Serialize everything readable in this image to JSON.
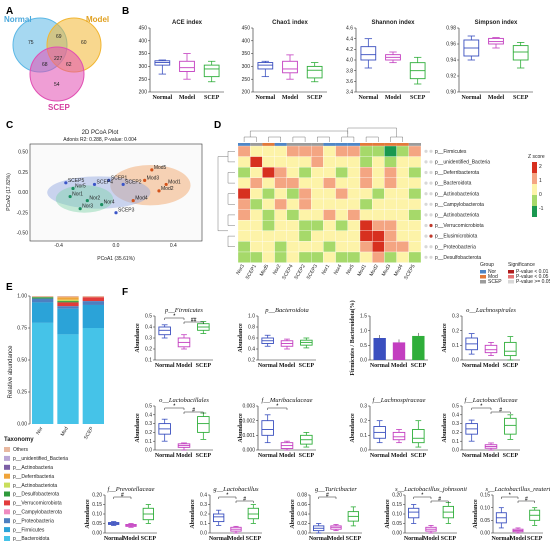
{
  "panel_labels": {
    "A": "A",
    "B": "B",
    "C": "C",
    "D": "D",
    "E": "E",
    "F": "F"
  },
  "colors": {
    "normal": "#3a4fbf",
    "model": "#c33ec0",
    "scep": "#2fae3a",
    "venn_normal": "#5cb8e6",
    "venn_model": "#f2b632",
    "venn_scep": "#e14fb3"
  },
  "groups": [
    "Normal",
    "Model",
    "SCEP"
  ],
  "venn": {
    "labels": {
      "normal": "Normal",
      "model": "Model",
      "scep": "SCEP"
    },
    "counts": [
      "75",
      "60",
      "69",
      "227",
      "68",
      "62",
      "54"
    ]
  },
  "alpha": [
    {
      "title": "ACE index",
      "ticks": [
        "450",
        "400",
        "350",
        "300",
        "250",
        "200"
      ],
      "ylim": [
        200,
        450
      ],
      "boxes": [
        [
          270,
          305,
          315,
          322,
          325
        ],
        [
          250,
          280,
          295,
          320,
          350
        ],
        [
          240,
          260,
          290,
          305,
          320
        ]
      ]
    },
    {
      "title": "Chao1 index",
      "ticks": [
        "450",
        "400",
        "350",
        "300",
        "250",
        "200"
      ],
      "ylim": [
        200,
        450
      ],
      "boxes": [
        [
          260,
          290,
          305,
          315,
          320
        ],
        [
          250,
          275,
          290,
          320,
          345
        ],
        [
          240,
          255,
          285,
          300,
          315
        ]
      ]
    },
    {
      "title": "Shannon index",
      "ticks": [
        "4.6",
        "4.4",
        "4.2",
        "4.0",
        "3.8",
        "3.6",
        "3.4"
      ],
      "ylim": [
        3.4,
        4.6
      ],
      "boxes": [
        [
          3.85,
          4.0,
          4.1,
          4.25,
          4.4
        ],
        [
          3.95,
          4.0,
          4.05,
          4.1,
          4.15
        ],
        [
          3.55,
          3.65,
          3.8,
          3.95,
          4.05
        ]
      ]
    },
    {
      "title": "Simpson index",
      "ticks": [
        "0.98",
        "0.96",
        "0.94",
        "0.92",
        "0.90"
      ],
      "ylim": [
        0.9,
        0.98
      ],
      "boxes": [
        [
          0.94,
          0.945,
          0.955,
          0.965,
          0.97
        ],
        [
          0.955,
          0.96,
          0.963,
          0.967,
          0.968
        ],
        [
          0.93,
          0.94,
          0.95,
          0.958,
          0.962
        ]
      ]
    }
  ],
  "pcoa": {
    "title": "2D PCoA Plot",
    "subtitle": "Adonis R2: 0.288, P-value: 0.004",
    "xlabel": "PCoA1 (35.61%)",
    "ylabel": "PCoA2 (17.82%)",
    "xticks": [
      "-0.4",
      "0.0",
      "0.4"
    ],
    "yticks": [
      "0.50",
      "0.25",
      "0.00",
      "-0.25",
      "-0.50"
    ],
    "xlim": [
      -0.6,
      0.6
    ],
    "ylim": [
      -0.6,
      0.6
    ],
    "points": [
      {
        "g": "normal",
        "label": "Nor1",
        "x": -0.32,
        "y": -0.05
      },
      {
        "g": "normal",
        "label": "Nor2",
        "x": -0.2,
        "y": -0.1
      },
      {
        "g": "normal",
        "label": "Nor3",
        "x": -0.25,
        "y": -0.2
      },
      {
        "g": "normal",
        "label": "Nor4",
        "x": -0.1,
        "y": -0.15
      },
      {
        "g": "normal",
        "label": "Nor5",
        "x": -0.3,
        "y": 0.05
      },
      {
        "g": "model",
        "label": "Mod1",
        "x": 0.35,
        "y": 0.1
      },
      {
        "g": "model",
        "label": "Mod2",
        "x": 0.3,
        "y": 0.02
      },
      {
        "g": "model",
        "label": "Mod3",
        "x": 0.2,
        "y": 0.15
      },
      {
        "g": "model",
        "label": "Mod4",
        "x": 0.12,
        "y": -0.1
      },
      {
        "g": "model",
        "label": "Mod5",
        "x": 0.25,
        "y": 0.28
      },
      {
        "g": "scep",
        "label": "SCEP1",
        "x": -0.05,
        "y": 0.15
      },
      {
        "g": "scep",
        "label": "SCEP2",
        "x": 0.05,
        "y": 0.1
      },
      {
        "g": "scep",
        "label": "SCEP3",
        "x": 0.0,
        "y": -0.25
      },
      {
        "g": "scep",
        "label": "SCEP4",
        "x": -0.15,
        "y": 0.1
      },
      {
        "g": "scep",
        "label": "SCEP5",
        "x": -0.35,
        "y": 0.12
      }
    ]
  },
  "heatmap": {
    "rows": [
      "p__Firmicutes",
      "p__unidentified_Bacteria",
      "p__Deferribacterota",
      "p__Bacteroidota",
      "p__Actinobacteriota",
      "p__Campylobacterota",
      "p__Actinobacteriota",
      "p__Verrucomicrobiota",
      "p__Elusimicrobiota",
      "p__Proteobacteria",
      "p__Desulfobacterota"
    ],
    "cols": [
      "Nor3",
      "SCEP1",
      "Mod5",
      "Nor2",
      "SCEP4",
      "SCEP2",
      "SCEP3",
      "Nor1",
      "Nor4",
      "Nor5",
      "Mod1",
      "Mod2",
      "Mod3",
      "Mod4",
      "SCEP5"
    ],
    "values": [
      [
        1,
        0,
        0,
        0,
        1,
        1,
        1,
        0,
        1,
        1,
        -1,
        -1,
        -2,
        -1,
        1
      ],
      [
        0,
        2,
        0,
        0,
        0,
        0,
        1,
        0,
        0,
        0,
        -1,
        0,
        -1,
        0,
        0
      ],
      [
        -1,
        0,
        2,
        1,
        0,
        -1,
        0,
        0,
        -1,
        0,
        1,
        0,
        1,
        0,
        -1
      ],
      [
        0,
        1,
        0,
        1,
        1,
        0,
        0,
        1,
        0,
        0,
        1,
        0,
        1,
        0,
        0
      ],
      [
        2,
        0,
        -1,
        0,
        -1,
        1,
        0,
        0,
        1,
        0,
        0,
        -1,
        0,
        0,
        -1
      ],
      [
        1,
        -1,
        0,
        1,
        0,
        1,
        0,
        0,
        0,
        0,
        -1,
        0,
        0,
        0,
        0
      ],
      [
        1,
        0,
        -1,
        0,
        -1,
        0,
        0,
        1,
        0,
        1,
        0,
        0,
        0,
        0,
        -1
      ],
      [
        0,
        0,
        -1,
        0,
        0,
        -1,
        -1,
        0,
        -1,
        0,
        2,
        1,
        1,
        0,
        0
      ],
      [
        0,
        0,
        0,
        0,
        0,
        -1,
        0,
        0,
        0,
        0,
        2,
        2,
        1,
        0,
        0
      ],
      [
        -1,
        0,
        0,
        -1,
        0,
        0,
        0,
        -1,
        0,
        0,
        1,
        2,
        1,
        1,
        0
      ],
      [
        -1,
        -1,
        0,
        -1,
        0,
        -1,
        -1,
        0,
        -1,
        -1,
        0,
        1,
        -1,
        0,
        -1
      ]
    ],
    "legend_title": "Z score",
    "legend_ticks": [
      "2",
      "1",
      "0",
      "-1"
    ],
    "group_title": "Group",
    "group_items": [
      "Nor",
      "Mod",
      "SCEP"
    ],
    "sig_title": "Significance",
    "sig_items": [
      "P-value < 0.01",
      "P-value < 0.05",
      "P-value >= 0.05"
    ]
  },
  "stacked": {
    "ylabel": "Relative abundance",
    "ticks": [
      "1.00",
      "0.75",
      "0.50",
      "0.25",
      "0.00"
    ],
    "cols": [
      "Nor",
      "Mod",
      "SCEP"
    ],
    "taxa_title": "Taxonomy",
    "taxa": [
      {
        "name": "Others",
        "color": "#e8b8a0"
      },
      {
        "name": "p__unidentified_Bacteria",
        "color": "#b9a6d6"
      },
      {
        "name": "p__Actinobacteria",
        "color": "#7c5fa6"
      },
      {
        "name": "p__Deferribacteria",
        "color": "#f0a43a"
      },
      {
        "name": "p__Actinobacteriota",
        "color": "#c9de5b"
      },
      {
        "name": "p__Desulfobacterota",
        "color": "#2e9a3a"
      },
      {
        "name": "p__Verrucomicrobiota",
        "color": "#e23b3b"
      },
      {
        "name": "p__Campylobacterota",
        "color": "#ef8bc0"
      },
      {
        "name": "p__Proteobacteria",
        "color": "#4e7fc0"
      },
      {
        "name": "p__Firmicutes",
        "color": "#2ba3d8"
      },
      {
        "name": "p__Bacteroidota",
        "color": "#45c3e8"
      }
    ],
    "values": [
      [
        0.01,
        0.0,
        0.0,
        0.0,
        0.0,
        0.01,
        0.0,
        0.0,
        0.03,
        0.16,
        0.79
      ],
      [
        0.01,
        0.0,
        0.0,
        0.02,
        0.01,
        0.01,
        0.03,
        0.0,
        0.02,
        0.2,
        0.7
      ],
      [
        0.01,
        0.0,
        0.0,
        0.0,
        0.0,
        0.0,
        0.03,
        0.0,
        0.03,
        0.18,
        0.75
      ]
    ]
  },
  "taxon_ylabel": "Abundance",
  "ratio_ylabel": "Firmicutes / Bacteroidota(%)",
  "taxon_plots": [
    {
      "title": "p__Firmicutes",
      "ticks": [
        "0.5",
        "0.4",
        "0.3",
        "0.2",
        "0.1"
      ],
      "ylim": [
        0.1,
        0.5
      ],
      "boxes": [
        [
          0.3,
          0.33,
          0.37,
          0.4,
          0.42
        ],
        [
          0.2,
          0.22,
          0.26,
          0.3,
          0.33
        ],
        [
          0.34,
          0.37,
          0.4,
          0.43,
          0.45
        ]
      ],
      "sig": [
        "*",
        "##"
      ]
    },
    {
      "title": "p__Bacteroidota",
      "ticks": [
        "1.0",
        "0.8",
        "0.6",
        "0.4",
        "0.2"
      ],
      "ylim": [
        0.2,
        1.0
      ],
      "boxes": [
        [
          0.45,
          0.5,
          0.55,
          0.6,
          0.65
        ],
        [
          0.4,
          0.45,
          0.5,
          0.55,
          0.58
        ],
        [
          0.42,
          0.47,
          0.52,
          0.56,
          0.6
        ]
      ],
      "sig": []
    },
    {
      "title": "",
      "ticks": [
        "1.5",
        "1.0",
        "0.5",
        "0.0"
      ],
      "ylim": [
        0,
        1.5
      ],
      "bars": [
        0.75,
        0.6,
        0.82
      ],
      "sig": []
    },
    {
      "title": "o__Lachnospirales",
      "ticks": [
        "0.3",
        "0.2",
        "0.1",
        "0.0"
      ],
      "ylim": [
        0,
        0.3
      ],
      "boxes": [
        [
          0.04,
          0.07,
          0.11,
          0.15,
          0.18
        ],
        [
          0.03,
          0.05,
          0.07,
          0.1,
          0.12
        ],
        [
          0.0,
          0.03,
          0.06,
          0.12,
          0.16
        ]
      ],
      "sig": []
    },
    {
      "title": "o__Lactobacillales",
      "ticks": [
        "0.5",
        "0.4",
        "0.3",
        "0.2",
        "0.1",
        "0.0"
      ],
      "ylim": [
        0,
        0.5
      ],
      "boxes": [
        [
          0.1,
          0.18,
          0.24,
          0.3,
          0.35
        ],
        [
          0.0,
          0.03,
          0.05,
          0.07,
          0.08
        ],
        [
          0.12,
          0.2,
          0.3,
          0.38,
          0.42
        ]
      ],
      "sig": [
        "*",
        "#"
      ]
    },
    {
      "title": "f__Muribaculaceae",
      "ticks": [
        "0.003",
        "0.002",
        "0.001",
        "0.000"
      ],
      "ylim": [
        0,
        0.003
      ],
      "boxes": [
        [
          0.0005,
          0.001,
          0.0014,
          0.002,
          0.0024
        ],
        [
          0.0,
          0.0001,
          0.0003,
          0.0005,
          0.0006
        ],
        [
          0.0002,
          0.0004,
          0.0007,
          0.001,
          0.0012
        ]
      ],
      "sig": [
        "*"
      ]
    },
    {
      "title": "f__Lachnospiraceae",
      "ticks": [
        "0.3",
        "0.2",
        "0.1",
        "0.0"
      ],
      "ylim": [
        0,
        0.3
      ],
      "boxes": [
        [
          0.05,
          0.08,
          0.12,
          0.16,
          0.2
        ],
        [
          0.05,
          0.07,
          0.09,
          0.12,
          0.14
        ],
        [
          0.02,
          0.05,
          0.08,
          0.14,
          0.2
        ]
      ],
      "sig": []
    },
    {
      "title": "f__Lactobacillaceae",
      "ticks": [
        "0.5",
        "0.4",
        "0.3",
        "0.2",
        "0.1",
        "0.0"
      ],
      "ylim": [
        0,
        0.5
      ],
      "boxes": [
        [
          0.1,
          0.18,
          0.24,
          0.3,
          0.34
        ],
        [
          0.0,
          0.02,
          0.04,
          0.06,
          0.08
        ],
        [
          0.12,
          0.18,
          0.28,
          0.36,
          0.4
        ]
      ],
      "sig": [
        "*",
        "#"
      ]
    },
    {
      "title": "f__Prevotellaceae",
      "ticks": [
        "0.20",
        "0.15",
        "0.10",
        "0.05",
        "0.00"
      ],
      "ylim": [
        0,
        0.2
      ],
      "boxes": [
        [
          0.04,
          0.045,
          0.05,
          0.055,
          0.06
        ],
        [
          0.03,
          0.035,
          0.04,
          0.045,
          0.05
        ],
        [
          0.05,
          0.07,
          0.1,
          0.13,
          0.15
        ]
      ],
      "sig": [
        "#"
      ]
    },
    {
      "title": "g__Lactobacillus",
      "ticks": [
        "0.4",
        "0.3",
        "0.2",
        "0.1",
        "0.0"
      ],
      "ylim": [
        0,
        0.4
      ],
      "boxes": [
        [
          0.08,
          0.12,
          0.17,
          0.2,
          0.24
        ],
        [
          0.0,
          0.02,
          0.04,
          0.06,
          0.07
        ],
        [
          0.1,
          0.15,
          0.2,
          0.26,
          0.3
        ]
      ],
      "sig": [
        "*",
        "#"
      ]
    },
    {
      "title": "g__Turicibacter",
      "ticks": [
        "0.08",
        "0.06",
        "0.04",
        "0.02",
        "0.00"
      ],
      "ylim": [
        0,
        0.08
      ],
      "boxes": [
        [
          0.0,
          0.005,
          0.01,
          0.015,
          0.02
        ],
        [
          0.005,
          0.008,
          0.012,
          0.015,
          0.018
        ],
        [
          0.015,
          0.025,
          0.035,
          0.045,
          0.055
        ]
      ],
      "sig": [
        "#"
      ]
    },
    {
      "title": "s__Lactobacillus_johnsonii",
      "ticks": [
        "0.20",
        "0.15",
        "0.10",
        "0.05",
        "0.00"
      ],
      "ylim": [
        0,
        0.2
      ],
      "boxes": [
        [
          0.05,
          0.08,
          0.11,
          0.13,
          0.15
        ],
        [
          0.0,
          0.01,
          0.02,
          0.03,
          0.04
        ],
        [
          0.05,
          0.08,
          0.11,
          0.14,
          0.16
        ]
      ],
      "sig": [
        "*",
        "#"
      ]
    },
    {
      "title": "s__Lactobacillus_reuteri",
      "ticks": [
        "0.15",
        "0.10",
        "0.05",
        "0.00"
      ],
      "ylim": [
        0,
        0.15
      ],
      "boxes": [
        [
          0.02,
          0.04,
          0.06,
          0.08,
          0.1
        ],
        [
          0.0,
          0.005,
          0.01,
          0.015,
          0.02
        ],
        [
          0.03,
          0.05,
          0.07,
          0.09,
          0.1
        ]
      ],
      "sig": [
        "*",
        "#"
      ]
    }
  ]
}
